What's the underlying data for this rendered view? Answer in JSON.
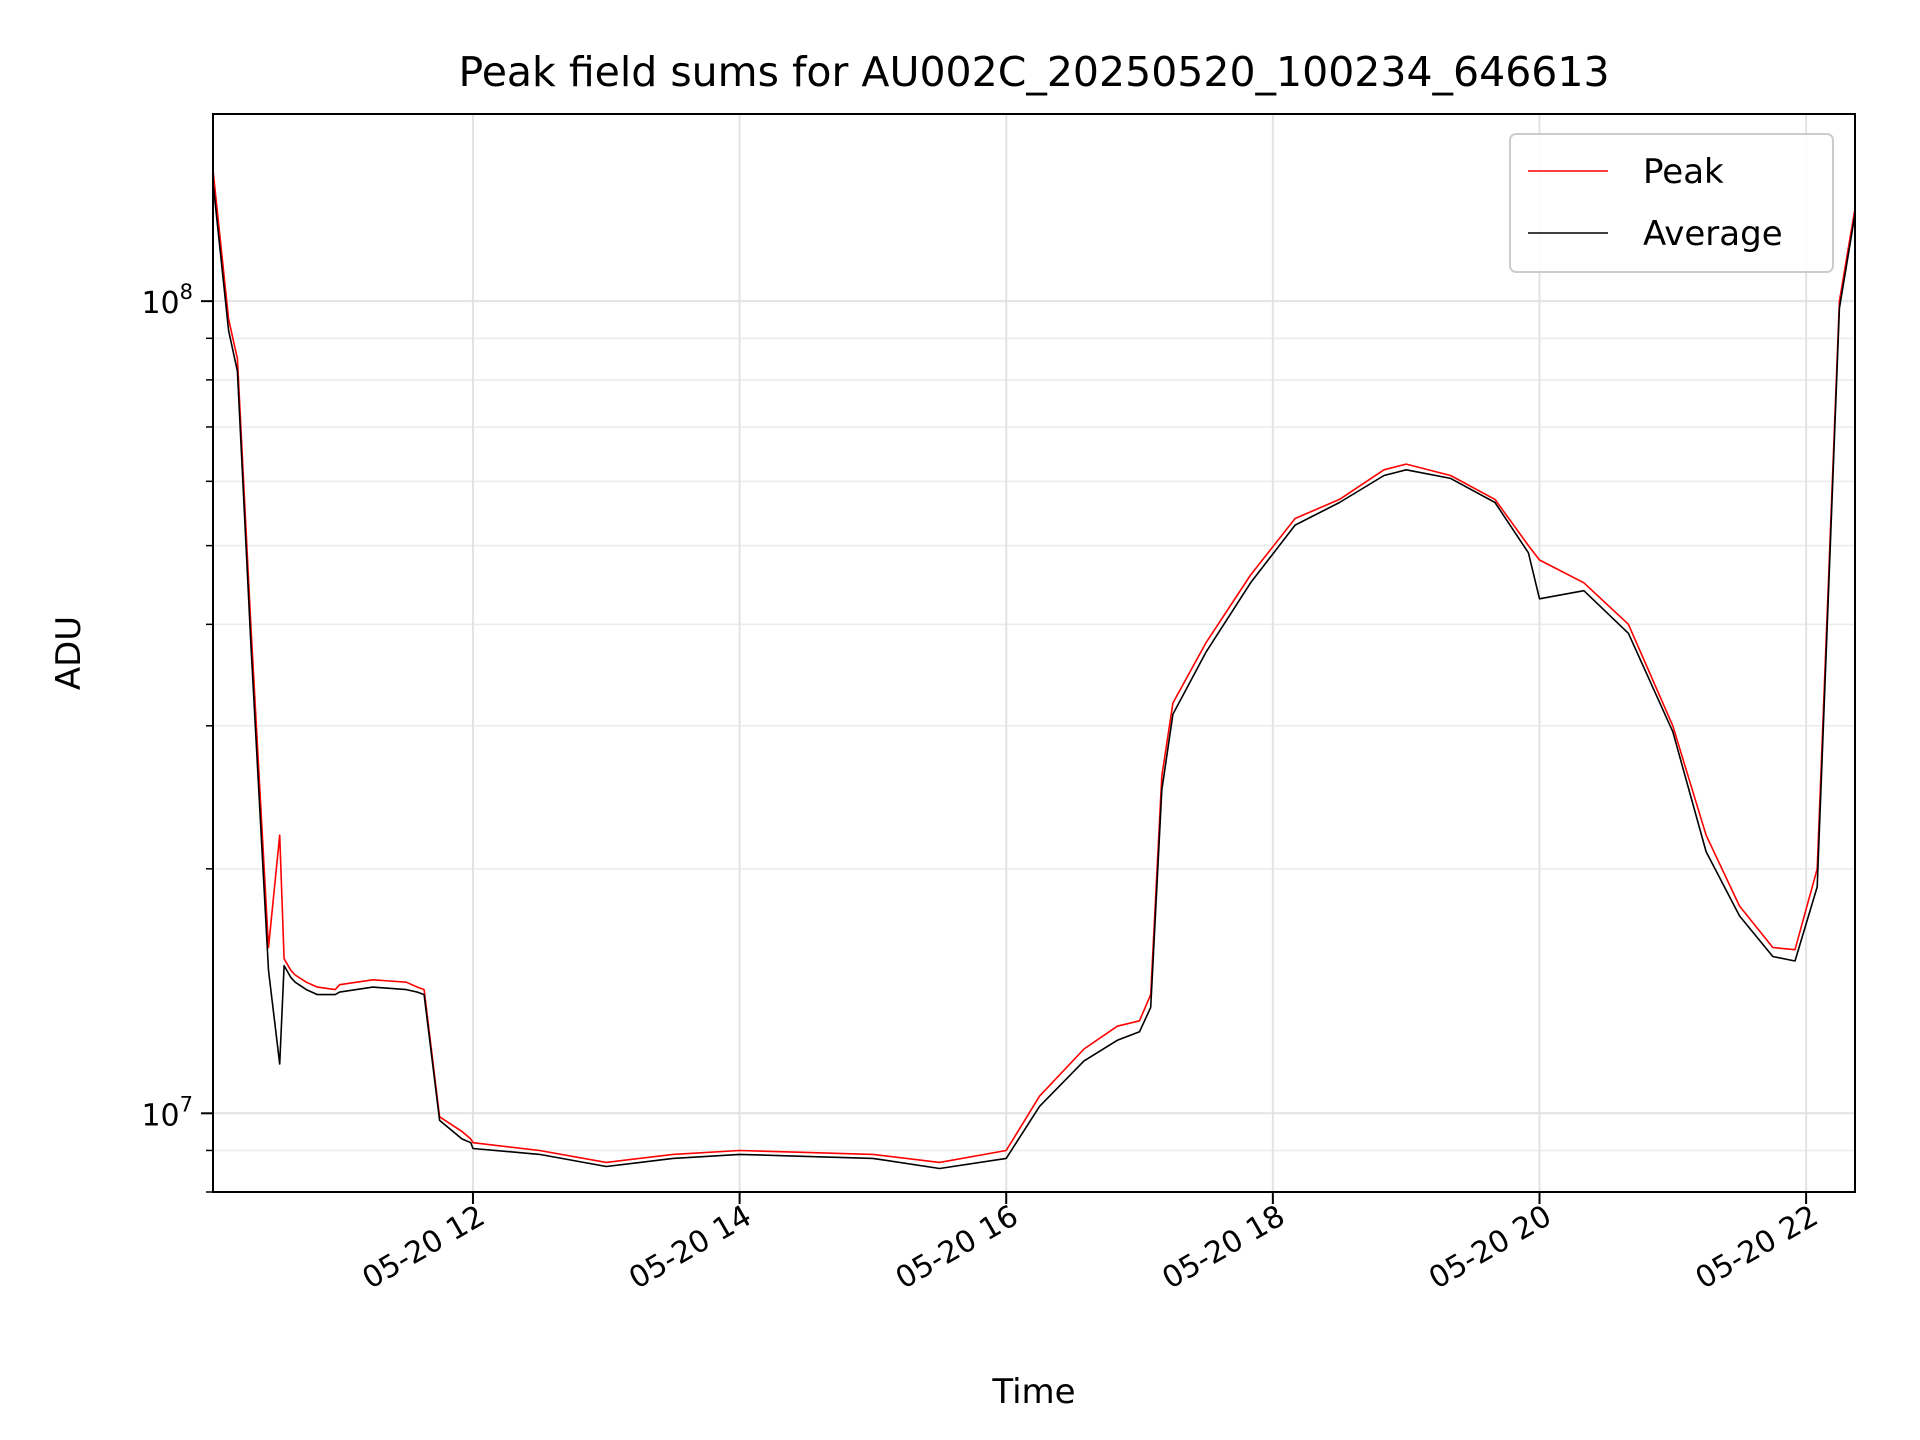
{
  "chart_data": {
    "type": "line",
    "title": "Peak field sums for AU002C_20250520_100234_646613",
    "xlabel": "Time",
    "ylabel": "ADU",
    "y_scale": "log",
    "ylim": [
      8000000,
      170000000
    ],
    "xlim": [
      "05-20 10:03",
      "05-20 22:22"
    ],
    "x_ticks": [
      "05-20 12",
      "05-20 14",
      "05-20 16",
      "05-20 18",
      "05-20 20",
      "05-20 22"
    ],
    "y_ticks": [
      {
        "mantissa": "10",
        "exponent": "7",
        "value": 10000000
      },
      {
        "mantissa": "10",
        "exponent": "8",
        "value": 100000000
      }
    ],
    "grid": true,
    "legend_position": "top-right",
    "series": [
      {
        "name": "Peak",
        "color": "#ff0000",
        "x": [
          "05-20 10:03",
          "05-20 10:10",
          "05-20 10:14",
          "05-20 10:20",
          "05-20 10:28",
          "05-20 10:33",
          "05-20 10:35",
          "05-20 10:38",
          "05-20 10:40",
          "05-20 10:45",
          "05-20 10:50",
          "05-20 10:58",
          "05-20 11:00",
          "05-20 11:15",
          "05-20 11:30",
          "05-20 11:35",
          "05-20 11:38",
          "05-20 11:45",
          "05-20 11:55",
          "05-20 11:59",
          "05-20 12:00",
          "05-20 12:30",
          "05-20 13:00",
          "05-20 13:30",
          "05-20 14:00",
          "05-20 14:30",
          "05-20 15:00",
          "05-20 15:30",
          "05-20 16:00",
          "05-20 16:15",
          "05-20 16:35",
          "05-20 16:50",
          "05-20 17:00",
          "05-20 17:05",
          "05-20 17:10",
          "05-20 17:15",
          "05-20 17:30",
          "05-20 17:50",
          "05-20 18:10",
          "05-20 18:30",
          "05-20 18:50",
          "05-20 19:00",
          "05-20 19:20",
          "05-20 19:40",
          "05-20 19:55",
          "05-20 20:00",
          "05-20 20:20",
          "05-20 20:40",
          "05-20 21:00",
          "05-20 21:15",
          "05-20 21:30",
          "05-20 21:45",
          "05-20 21:55",
          "05-20 22:05",
          "05-20 22:15",
          "05-20 22:22"
        ],
        "values": [
          145000000,
          95000000,
          85000000,
          40000000,
          16000000,
          22000000,
          15500000,
          15000000,
          14800000,
          14500000,
          14300000,
          14200000,
          14400000,
          14600000,
          14500000,
          14300000,
          14200000,
          9900000,
          9500000,
          9300000,
          9200000,
          9000000,
          8700000,
          8900000,
          9000000,
          8950000,
          8900000,
          8700000,
          9000000,
          10500000,
          12000000,
          12800000,
          13000000,
          14000000,
          26000000,
          32000000,
          38000000,
          46000000,
          54000000,
          57000000,
          62000000,
          63000000,
          61000000,
          57000000,
          50000000,
          48000000,
          45000000,
          40000000,
          30000000,
          22000000,
          18000000,
          16000000,
          15900000,
          20000000,
          100000000,
          130000000
        ]
      },
      {
        "name": "Average",
        "color": "#000000",
        "x": [
          "05-20 10:03",
          "05-20 10:10",
          "05-20 10:14",
          "05-20 10:20",
          "05-20 10:28",
          "05-20 10:33",
          "05-20 10:35",
          "05-20 10:38",
          "05-20 10:40",
          "05-20 10:45",
          "05-20 10:50",
          "05-20 10:58",
          "05-20 11:00",
          "05-20 11:15",
          "05-20 11:30",
          "05-20 11:35",
          "05-20 11:38",
          "05-20 11:45",
          "05-20 11:55",
          "05-20 11:59",
          "05-20 12:00",
          "05-20 12:30",
          "05-20 13:00",
          "05-20 13:30",
          "05-20 14:00",
          "05-20 14:30",
          "05-20 15:00",
          "05-20 15:30",
          "05-20 16:00",
          "05-20 16:15",
          "05-20 16:35",
          "05-20 16:50",
          "05-20 17:00",
          "05-20 17:05",
          "05-20 17:10",
          "05-20 17:15",
          "05-20 17:30",
          "05-20 17:50",
          "05-20 18:10",
          "05-20 18:30",
          "05-20 18:50",
          "05-20 19:00",
          "05-20 19:20",
          "05-20 19:40",
          "05-20 19:55",
          "05-20 20:00",
          "05-20 20:20",
          "05-20 20:40",
          "05-20 21:00",
          "05-20 21:15",
          "05-20 21:30",
          "05-20 21:45",
          "05-20 21:55",
          "05-20 22:05",
          "05-20 22:15",
          "05-20 22:22"
        ],
        "values": [
          140000000,
          92000000,
          82000000,
          38000000,
          15000000,
          11500000,
          15200000,
          14700000,
          14500000,
          14200000,
          14000000,
          14000000,
          14100000,
          14300000,
          14200000,
          14100000,
          14000000,
          9800000,
          9300000,
          9200000,
          9050000,
          8900000,
          8600000,
          8800000,
          8900000,
          8850000,
          8800000,
          8550000,
          8800000,
          10200000,
          11600000,
          12300000,
          12600000,
          13500000,
          25000000,
          31000000,
          37000000,
          45000000,
          53000000,
          56500000,
          61000000,
          62000000,
          60500000,
          56500000,
          49000000,
          43000000,
          44000000,
          39000000,
          29500000,
          21000000,
          17500000,
          15600000,
          15400000,
          19000000,
          98000000,
          128000000
        ]
      }
    ]
  }
}
